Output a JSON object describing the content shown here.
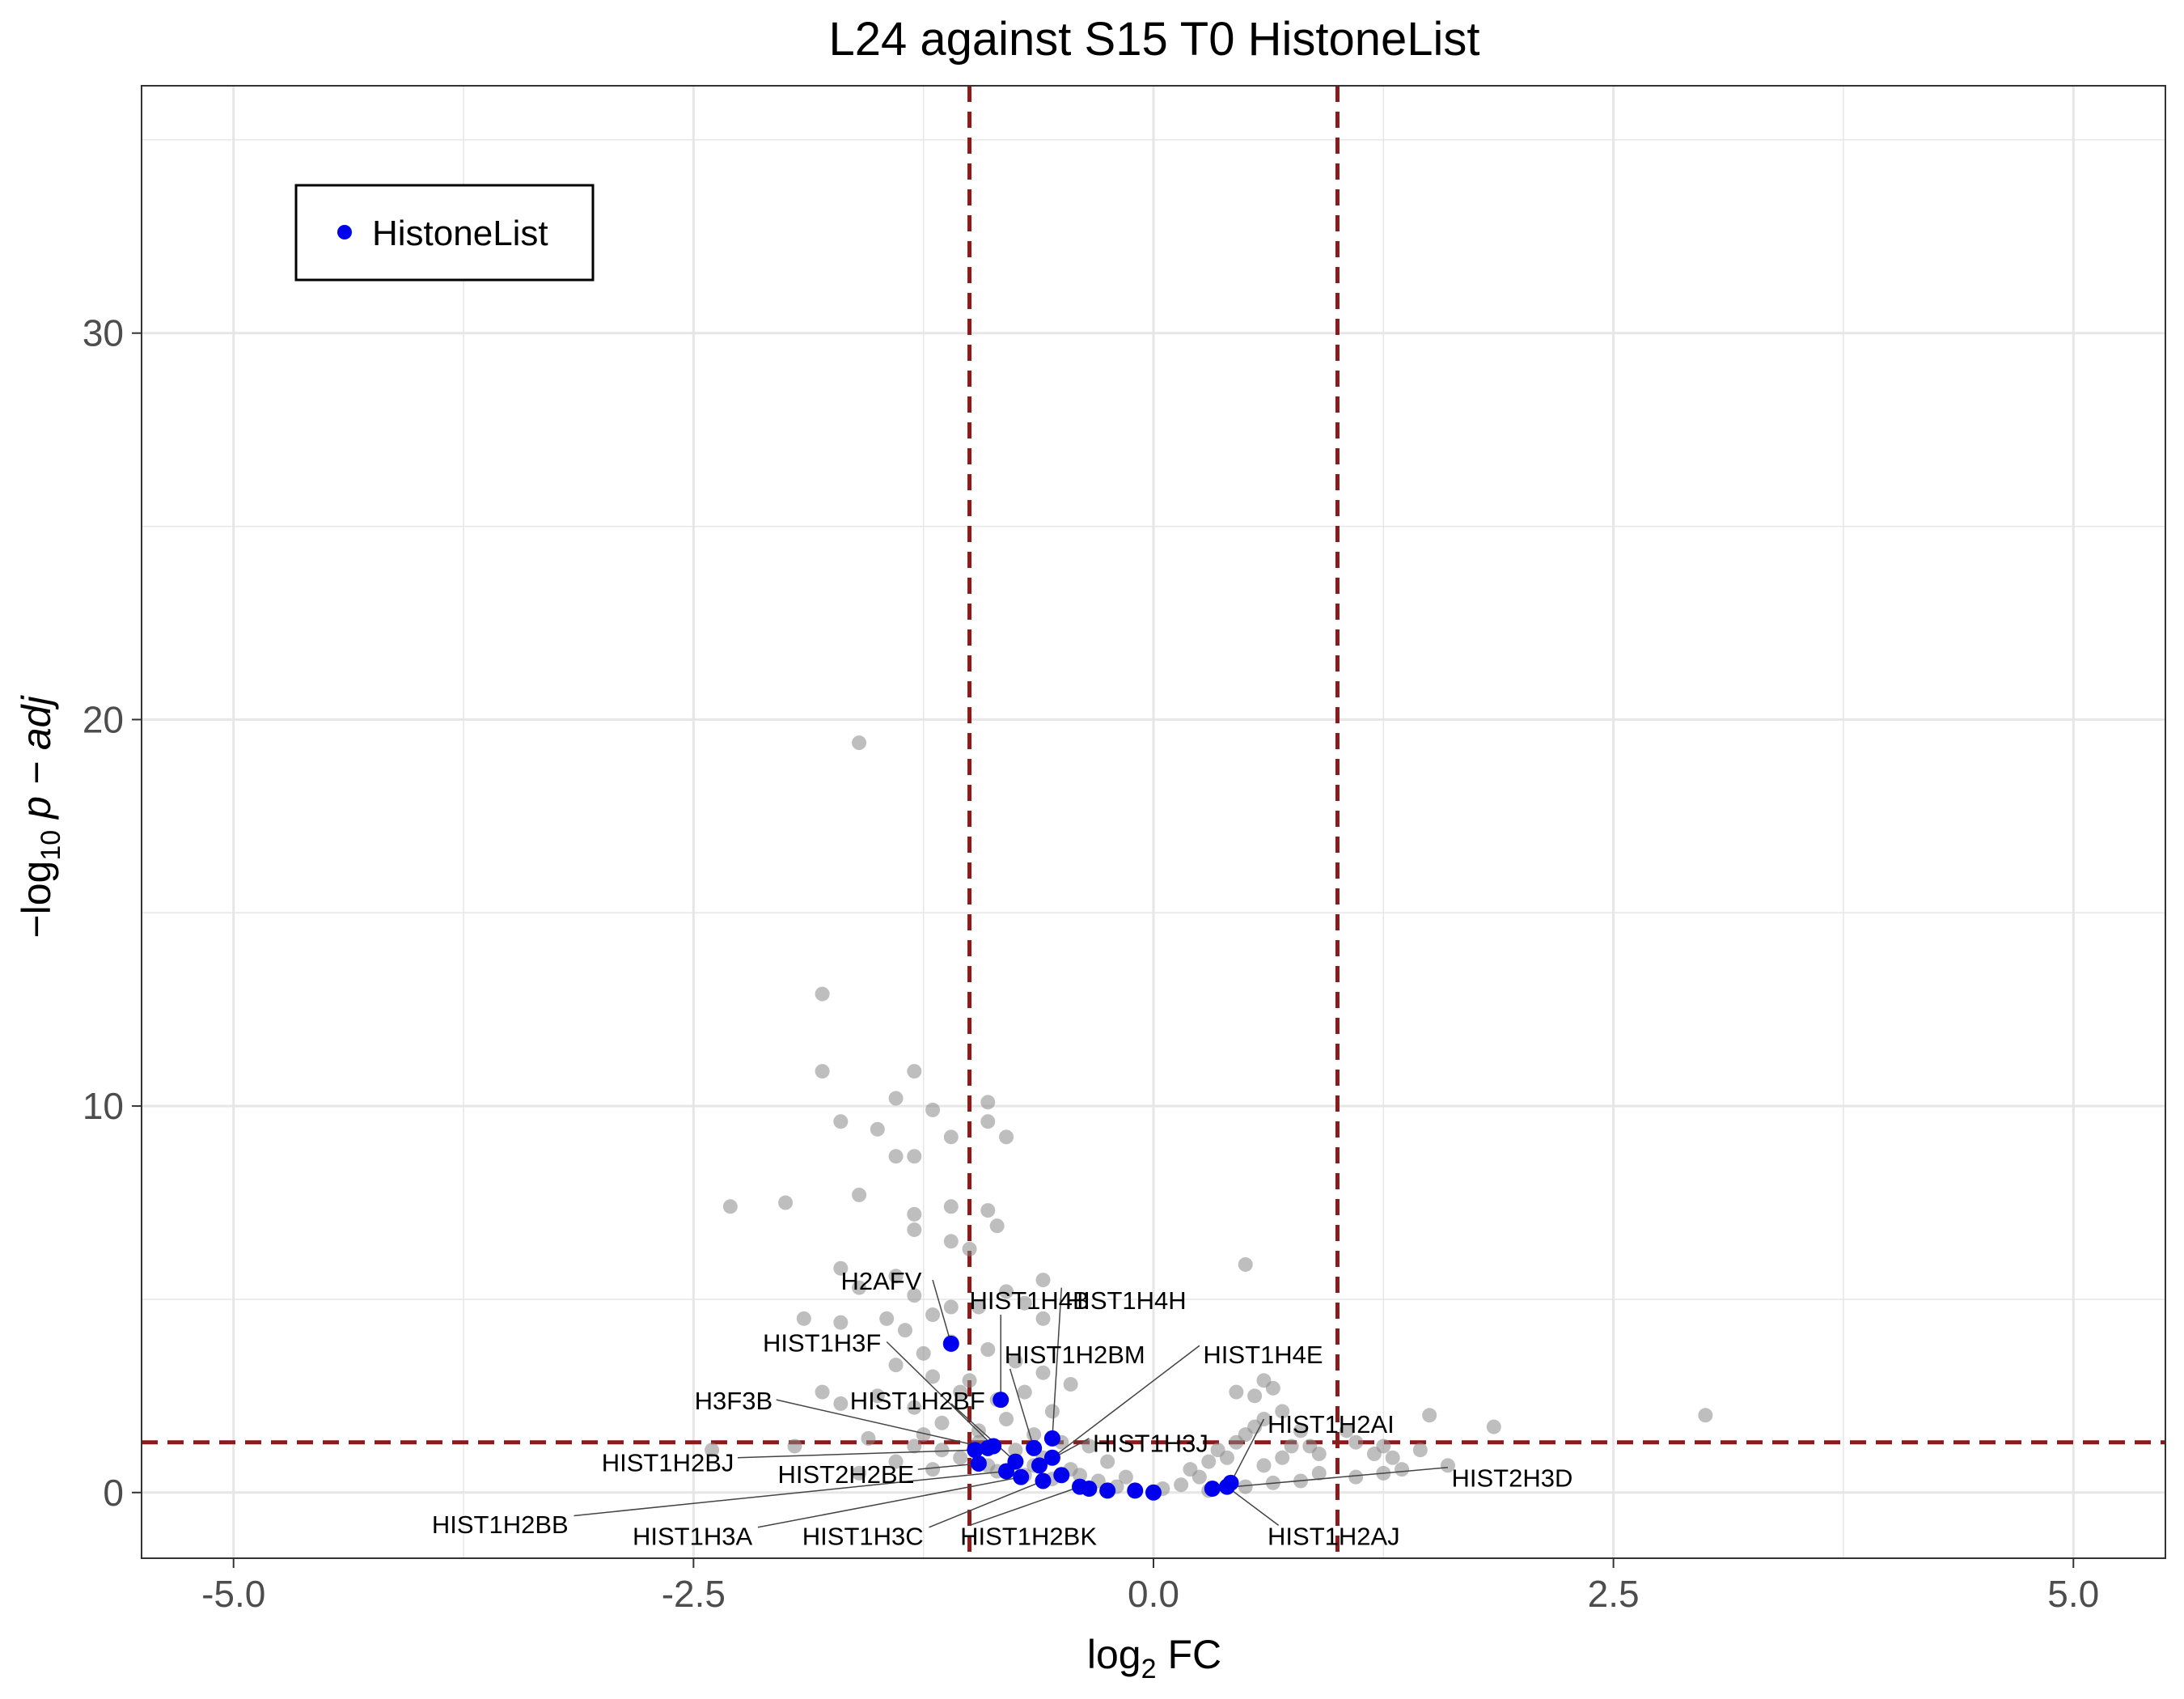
{
  "chart_data": {
    "type": "scatter",
    "title": "L24 against S15 T0 HistoneList",
    "xlabel_main": "log",
    "xlabel_sub": "2",
    "xlabel_tail": " FC",
    "ylabel_prefix": "−log",
    "ylabel_sub": "10",
    "ylabel_tail": " p − adj",
    "xlim": [
      -5.5,
      5.5
    ],
    "ylim": [
      -1.7,
      36.4
    ],
    "x_ticks": [
      -5.0,
      -2.5,
      0.0,
      2.5,
      5.0
    ],
    "x_tick_labels": [
      "-5.0",
      "-2.5",
      "0.0",
      "2.5",
      "5.0"
    ],
    "y_ticks": [
      0,
      10,
      20,
      30
    ],
    "y_tick_labels": [
      "0",
      "10",
      "20",
      "30"
    ],
    "thresholds": {
      "fc": [
        -1,
        1
      ],
      "p": 1.3
    },
    "grid": true,
    "legend": {
      "position": "top-left",
      "entries": [
        "HistoneList"
      ]
    },
    "colors": {
      "background": "#888888",
      "highlight": "#0000ee",
      "threshold": "#8b1a1a",
      "grid": "#e6e6e6"
    },
    "background_points": [
      [
        -1.6,
        19.4
      ],
      [
        -1.8,
        12.9
      ],
      [
        -1.8,
        10.9
      ],
      [
        -1.3,
        10.9
      ],
      [
        -1.4,
        10.2
      ],
      [
        -1.7,
        9.6
      ],
      [
        -1.5,
        9.4
      ],
      [
        -1.4,
        8.7
      ],
      [
        -1.3,
        8.7
      ],
      [
        -1.2,
        9.9
      ],
      [
        -1.1,
        9.2
      ],
      [
        -0.9,
        10.1
      ],
      [
        -0.9,
        9.6
      ],
      [
        -0.8,
        9.2
      ],
      [
        -2.3,
        7.4
      ],
      [
        -2.0,
        7.5
      ],
      [
        -1.6,
        7.7
      ],
      [
        -1.3,
        7.2
      ],
      [
        -1.1,
        7.4
      ],
      [
        -0.9,
        7.3
      ],
      [
        -1.3,
        6.8
      ],
      [
        -1.1,
        6.5
      ],
      [
        -1.0,
        6.3
      ],
      [
        -0.85,
        6.9
      ],
      [
        -0.8,
        5.2
      ],
      [
        -0.6,
        5.5
      ],
      [
        0.5,
        5.9
      ],
      [
        -1.7,
        5.8
      ],
      [
        -1.6,
        5.3
      ],
      [
        -1.4,
        5.6
      ],
      [
        -1.3,
        5.1
      ],
      [
        -1.1,
        4.8
      ],
      [
        -1.9,
        4.5
      ],
      [
        -1.7,
        4.4
      ],
      [
        -1.45,
        4.5
      ],
      [
        -1.35,
        4.2
      ],
      [
        -1.2,
        4.6
      ],
      [
        -0.95,
        4.8
      ],
      [
        -0.7,
        4.9
      ],
      [
        -0.6,
        4.5
      ],
      [
        -1.25,
        3.6
      ],
      [
        -1.1,
        3.9
      ],
      [
        -0.9,
        3.7
      ],
      [
        -0.75,
        3.4
      ],
      [
        -0.6,
        3.1
      ],
      [
        -1.4,
        3.3
      ],
      [
        -1.2,
        3.0
      ],
      [
        -1.0,
        2.9
      ],
      [
        -1.8,
        2.6
      ],
      [
        -1.7,
        2.3
      ],
      [
        -1.5,
        2.5
      ],
      [
        -1.3,
        2.2
      ],
      [
        -1.05,
        2.6
      ],
      [
        -0.85,
        2.4
      ],
      [
        -0.7,
        2.6
      ],
      [
        -0.55,
        2.1
      ],
      [
        -0.45,
        2.8
      ],
      [
        -1.95,
        1.2
      ],
      [
        -1.55,
        1.4
      ],
      [
        -1.25,
        1.5
      ],
      [
        -1.15,
        1.8
      ],
      [
        -0.95,
        1.6
      ],
      [
        -0.8,
        1.9
      ],
      [
        -0.65,
        1.5
      ],
      [
        -0.5,
        1.3
      ],
      [
        -0.35,
        1.2
      ],
      [
        -0.25,
        0.8
      ],
      [
        -0.15,
        0.4
      ],
      [
        -0.45,
        0.6
      ],
      [
        -0.6,
        0.9
      ],
      [
        -0.75,
        1.1
      ],
      [
        -0.9,
        0.7
      ],
      [
        -1.05,
        0.9
      ],
      [
        -1.2,
        0.6
      ],
      [
        -1.4,
        0.8
      ],
      [
        -1.6,
        0.5
      ],
      [
        -2.4,
        1.1
      ],
      [
        -0.3,
        0.3
      ],
      [
        -0.2,
        0.15
      ],
      [
        -0.1,
        0.05
      ],
      [
        0.05,
        0.1
      ],
      [
        0.15,
        0.2
      ],
      [
        0.25,
        0.4
      ],
      [
        0.3,
        0.8
      ],
      [
        0.35,
        1.1
      ],
      [
        0.45,
        1.3
      ],
      [
        0.5,
        1.5
      ],
      [
        0.55,
        1.7
      ],
      [
        0.6,
        1.9
      ],
      [
        0.4,
        0.9
      ],
      [
        0.2,
        0.6
      ],
      [
        0.6,
        0.7
      ],
      [
        0.7,
        0.9
      ],
      [
        0.75,
        1.2
      ],
      [
        0.7,
        2.1
      ],
      [
        0.55,
        2.5
      ],
      [
        0.45,
        2.6
      ],
      [
        0.6,
        2.9
      ],
      [
        0.65,
        2.7
      ],
      [
        0.8,
        1.6
      ],
      [
        0.85,
        1.2
      ],
      [
        0.9,
        1.0
      ],
      [
        0.9,
        0.5
      ],
      [
        0.8,
        0.3
      ],
      [
        1.05,
        1.6
      ],
      [
        1.1,
        1.3
      ],
      [
        1.2,
        1.0
      ],
      [
        1.25,
        1.2
      ],
      [
        1.3,
        0.9
      ],
      [
        1.35,
        0.6
      ],
      [
        1.45,
        1.1
      ],
      [
        1.5,
        2.0
      ],
      [
        1.1,
        0.4
      ],
      [
        1.25,
        0.5
      ],
      [
        1.85,
        1.7
      ],
      [
        3.0,
        2.0
      ],
      [
        1.6,
        0.7
      ],
      [
        0.65,
        0.25
      ],
      [
        0.5,
        0.15
      ],
      [
        0.3,
        0.05
      ],
      [
        -0.35,
        0.1
      ],
      [
        -0.55,
        0.35
      ],
      [
        -0.7,
        0.45
      ],
      [
        -0.95,
        1.3
      ],
      [
        -1.15,
        1.1
      ],
      [
        -1.3,
        1.2
      ],
      [
        -0.85,
        0.55
      ],
      [
        -0.65,
        0.7
      ],
      [
        -0.4,
        0.45
      ]
    ],
    "highlight_points": [
      {
        "name": "H2AFV",
        "x": -1.1,
        "y": 3.85
      },
      {
        "name": "HIST1H4B",
        "x": -0.83,
        "y": 2.4
      },
      {
        "name": "HIST1H4H",
        "x": -0.55,
        "y": 1.4
      },
      {
        "name": "HIST1H3F",
        "x": -0.87,
        "y": 1.2
      },
      {
        "name": "HIST1H2BM",
        "x": -0.65,
        "y": 1.15
      },
      {
        "name": "HIST1H4E",
        "x": -0.55,
        "y": 0.9
      },
      {
        "name": "H3F3B",
        "x": -0.9,
        "y": 1.15
      },
      {
        "name": "HIST1H2BF",
        "x": -0.75,
        "y": 0.8
      },
      {
        "name": "HIST1H3J",
        "x": -0.62,
        "y": 0.7
      },
      {
        "name": "HIST1H2AI",
        "x": 0.42,
        "y": 0.25
      },
      {
        "name": "HIST1H2BJ",
        "x": -0.97,
        "y": 1.1
      },
      {
        "name": "HIST2H2BE",
        "x": -0.95,
        "y": 0.75
      },
      {
        "name": "HIST2H3D",
        "x": 0.32,
        "y": 0.1
      },
      {
        "name": "HIST1H2BB",
        "x": -0.8,
        "y": 0.55
      },
      {
        "name": "HIST1H3A",
        "x": -0.72,
        "y": 0.4
      },
      {
        "name": "HIST1H3C",
        "x": -0.6,
        "y": 0.3
      },
      {
        "name": "HIST1H2BK",
        "x": -0.4,
        "y": 0.15
      },
      {
        "name": "HIST1H2AJ",
        "x": 0.4,
        "y": 0.15
      },
      {
        "name": "",
        "x": -0.5,
        "y": 0.45
      },
      {
        "name": "",
        "x": -0.35,
        "y": 0.1
      },
      {
        "name": "",
        "x": -0.25,
        "y": 0.05
      },
      {
        "name": "",
        "x": -0.1,
        "y": 0.05
      },
      {
        "name": "",
        "x": 0.0,
        "y": 0.0
      }
    ],
    "labels": [
      {
        "text": "H2AFV",
        "x": -1.26,
        "y": 5.5,
        "anchor": "end",
        "lx": -1.2,
        "ly": 5.5
      },
      {
        "text": "HIST1H4B",
        "x": -1.0,
        "y": 5.0,
        "anchor": "start",
        "lx": -0.83,
        "ly": 4.6
      },
      {
        "text": "HIST1H4H",
        "x": -0.48,
        "y": 5.0,
        "anchor": "start",
        "lx": -0.5,
        "ly": 5.3
      },
      {
        "text": "HIST1H3F",
        "x": -1.48,
        "y": 3.9,
        "anchor": "end",
        "lx": -1.45,
        "ly": 3.9
      },
      {
        "text": "HIST1H2BM",
        "x": -0.81,
        "y": 3.6,
        "anchor": "start",
        "lx": -0.78,
        "ly": 3.2
      },
      {
        "text": "HIST1H4E",
        "x": 0.27,
        "y": 3.6,
        "anchor": "start",
        "lx": 0.25,
        "ly": 3.8
      },
      {
        "text": "H3F3B",
        "x": -2.07,
        "y": 2.4,
        "anchor": "end",
        "lx": -2.05,
        "ly": 2.4
      },
      {
        "text": "HIST1H2BF",
        "x": -1.65,
        "y": 2.4,
        "anchor": "start",
        "lx": -1.1,
        "ly": 2.3
      },
      {
        "text": "HIST1H3J",
        "x": -0.33,
        "y": 1.3,
        "anchor": "start",
        "lx": -0.35,
        "ly": 1.4
      },
      {
        "text": "HIST1H2AI",
        "x": 0.62,
        "y": 1.8,
        "anchor": "start",
        "lx": 0.6,
        "ly": 1.9
      },
      {
        "text": "HIST1H2BJ",
        "x": -2.28,
        "y": 0.8,
        "anchor": "end",
        "lx": -2.26,
        "ly": 0.9
      },
      {
        "text": "HIST2H2BE",
        "x": -1.3,
        "y": 0.5,
        "anchor": "end",
        "lx": -1.28,
        "ly": 0.6
      },
      {
        "text": "HIST2H3D",
        "x": 1.62,
        "y": 0.4,
        "anchor": "start",
        "lx": 1.6,
        "ly": 0.65
      },
      {
        "text": "HIST1H2BB",
        "x": -3.18,
        "y": -0.8,
        "anchor": "end",
        "lx": -3.15,
        "ly": -0.6
      },
      {
        "text": "HIST1H3A",
        "x": -2.18,
        "y": -1.1,
        "anchor": "end",
        "lx": -2.15,
        "ly": -0.9
      },
      {
        "text": "HIST1H3C",
        "x": -1.25,
        "y": -1.1,
        "anchor": "end",
        "lx": -1.22,
        "ly": -0.9
      },
      {
        "text": "HIST1H2BK",
        "x": -1.05,
        "y": -1.1,
        "anchor": "start",
        "lx": -1.0,
        "ly": -0.85
      },
      {
        "text": "HIST1H2AJ",
        "x": 0.62,
        "y": -1.1,
        "anchor": "start",
        "lx": 0.68,
        "ly": -0.85
      }
    ]
  }
}
